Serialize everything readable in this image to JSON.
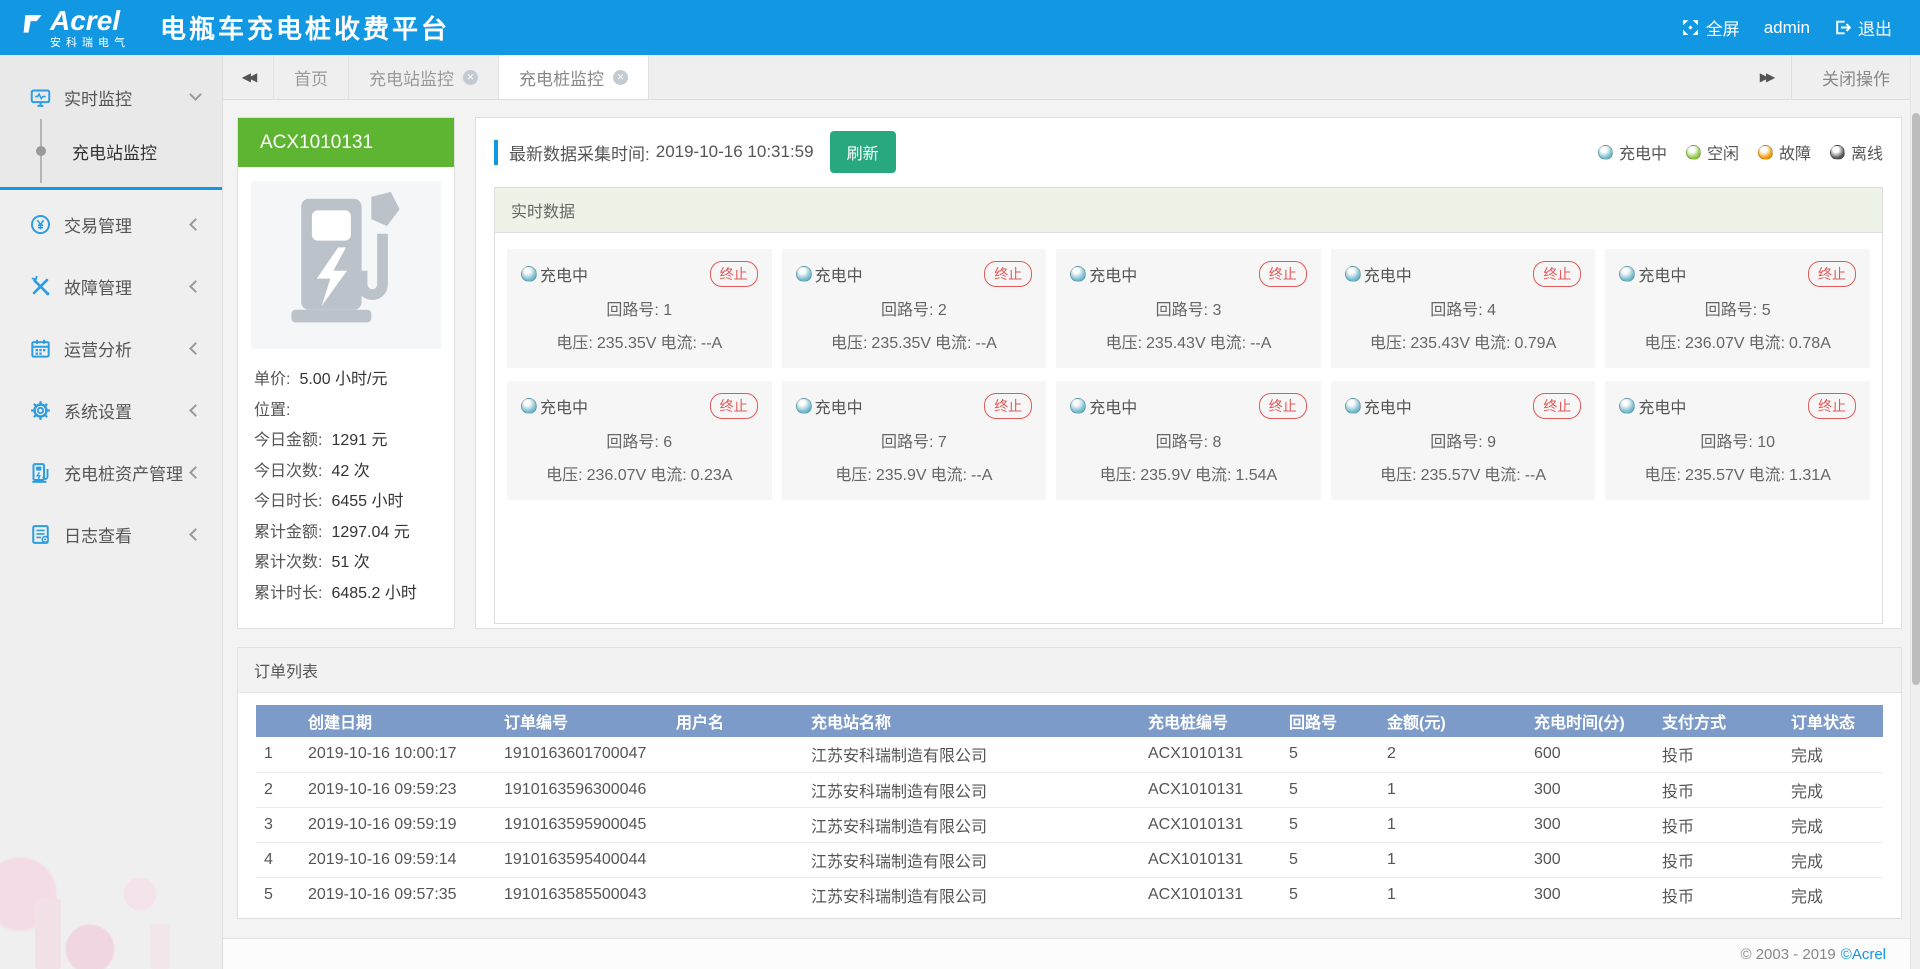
{
  "header": {
    "brand": "Acrel",
    "brand_sub": "安科瑞电气",
    "title": "电瓶车充电桩收费平台",
    "fullscreen_label": "全屏",
    "username": "admin",
    "logout_label": "退出"
  },
  "tabbar": {
    "tabs": [
      {
        "id": "home",
        "label": "首页",
        "closable": false,
        "active": false
      },
      {
        "id": "station-monitor",
        "label": "充电站监控",
        "closable": true,
        "active": false
      },
      {
        "id": "pile-monitor",
        "label": "充电桩监控",
        "closable": true,
        "active": true
      }
    ],
    "close_ops_label": "关闭操作"
  },
  "icons": {
    "scroll_left_glyph": "◀◀",
    "scroll_right_glyph": "▶▶",
    "close_glyph": "✕"
  },
  "sidebar": {
    "items": [
      {
        "id": "realtime-monitor",
        "label": "实时监控",
        "icon": "monitor-icon",
        "expanded": true,
        "children": [
          {
            "id": "station-monitor",
            "label": "充电站监控",
            "active": true
          }
        ]
      },
      {
        "id": "transaction-mgmt",
        "label": "交易管理",
        "icon": "transaction-icon",
        "expanded": false
      },
      {
        "id": "fault-mgmt",
        "label": "故障管理",
        "icon": "fault-icon",
        "expanded": false
      },
      {
        "id": "operation-analysis",
        "label": "运营分析",
        "icon": "analysis-icon",
        "expanded": false
      },
      {
        "id": "system-settings",
        "label": "系统设置",
        "icon": "settings-icon",
        "expanded": false
      },
      {
        "id": "pile-asset-mgmt",
        "label": "充电桩资产管理",
        "icon": "asset-icon",
        "expanded": false
      },
      {
        "id": "log-view",
        "label": "日志查看",
        "icon": "log-icon",
        "expanded": false
      }
    ]
  },
  "device": {
    "id": "ACX1010131",
    "stats": [
      {
        "label": "单价:",
        "value": "5.00 小时/元"
      },
      {
        "label": "位置:",
        "value": ""
      },
      {
        "label": "今日金额:",
        "value": "1291 元"
      },
      {
        "label": "今日次数:",
        "value": "42 次"
      },
      {
        "label": "今日时长:",
        "value": "6455 小时"
      },
      {
        "label": "累计金额:",
        "value": "1297.04 元"
      },
      {
        "label": "累计次数:",
        "value": "51 次"
      },
      {
        "label": "累计时长:",
        "value": "6485.2 小时"
      }
    ]
  },
  "monitor": {
    "collect_time_label": "最新数据采集时间:",
    "collect_time": "2019-10-16 10:31:59",
    "refresh_label": "刷新",
    "legend": [
      {
        "label": "充电中",
        "color": "#6fb9cc"
      },
      {
        "label": "空闲",
        "color": "#8dc63f"
      },
      {
        "label": "故障",
        "color": "#f39800"
      },
      {
        "label": "离线",
        "color": "#555555"
      }
    ],
    "panel_title": "实时数据",
    "status_charging": "充电中",
    "terminate_label": "终止",
    "circuit_label": "回路号:",
    "voltage_label": "电压:",
    "current_label": "电流:",
    "circuits": [
      {
        "no": "1",
        "voltage": "235.35V",
        "current": "--A"
      },
      {
        "no": "2",
        "voltage": "235.35V",
        "current": "--A"
      },
      {
        "no": "3",
        "voltage": "235.43V",
        "current": "--A"
      },
      {
        "no": "4",
        "voltage": "235.43V",
        "current": "0.79A"
      },
      {
        "no": "5",
        "voltage": "236.07V",
        "current": "0.78A"
      },
      {
        "no": "6",
        "voltage": "236.07V",
        "current": "0.23A"
      },
      {
        "no": "7",
        "voltage": "235.9V",
        "current": "--A"
      },
      {
        "no": "8",
        "voltage": "235.9V",
        "current": "1.54A"
      },
      {
        "no": "9",
        "voltage": "235.57V",
        "current": "--A"
      },
      {
        "no": "10",
        "voltage": "235.57V",
        "current": "1.31A"
      }
    ]
  },
  "orders": {
    "title": "订单列表",
    "columns": [
      "创建日期",
      "订单编号",
      "用户名",
      "充电站名称",
      "充电桩编号",
      "回路号",
      "金额(元)",
      "充电时间(分)",
      "支付方式",
      "订单状态"
    ],
    "rows": [
      [
        "1",
        "2019-10-16 10:00:17",
        "1910163601700047",
        "",
        "江苏安科瑞制造有限公司",
        "ACX1010131",
        "5",
        "2",
        "600",
        "投币",
        "完成"
      ],
      [
        "2",
        "2019-10-16 09:59:23",
        "1910163596300046",
        "",
        "江苏安科瑞制造有限公司",
        "ACX1010131",
        "5",
        "1",
        "300",
        "投币",
        "完成"
      ],
      [
        "3",
        "2019-10-16 09:59:19",
        "1910163595900045",
        "",
        "江苏安科瑞制造有限公司",
        "ACX1010131",
        "5",
        "1",
        "300",
        "投币",
        "完成"
      ],
      [
        "4",
        "2019-10-16 09:59:14",
        "1910163595400044",
        "",
        "江苏安科瑞制造有限公司",
        "ACX1010131",
        "5",
        "1",
        "300",
        "投币",
        "完成"
      ],
      [
        "5",
        "2019-10-16 09:57:35",
        "1910163585500043",
        "",
        "江苏安科瑞制造有限公司",
        "ACX1010131",
        "5",
        "1",
        "300",
        "投币",
        "完成"
      ]
    ]
  },
  "footer": {
    "copyright": "© 2003 - 2019",
    "brand": "©Acrel"
  },
  "colors": {
    "topbar_blue": "#1297e3",
    "device_green": "#5eb531",
    "refresh_teal": "#28a87e",
    "table_header_blue": "#7d9bc8",
    "terminate_red": "#e05a5a",
    "charging": "#6fb9cc",
    "idle": "#8dc63f",
    "fault": "#f39800",
    "offline": "#555555"
  }
}
